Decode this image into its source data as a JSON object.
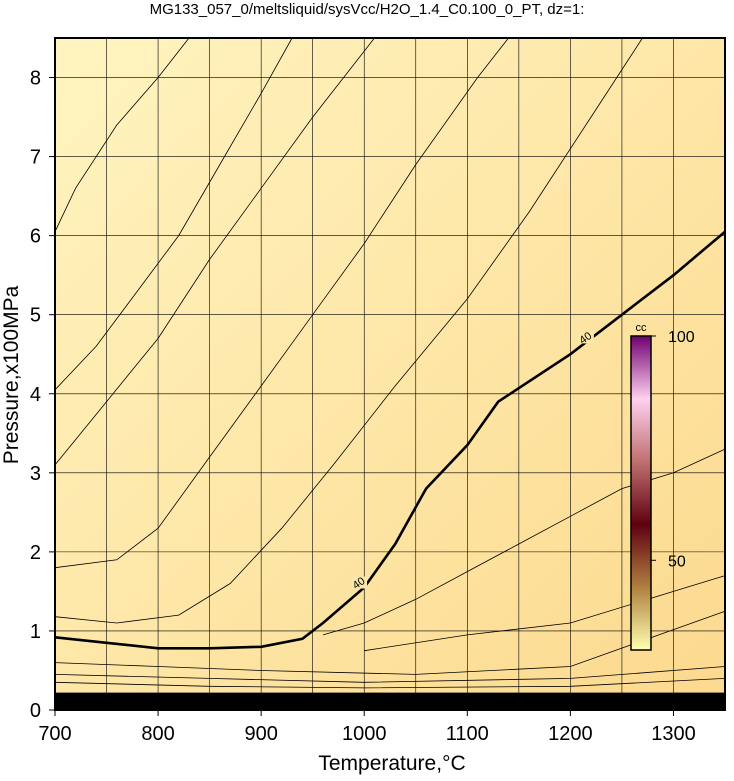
{
  "chart_data": {
    "type": "contour",
    "title": "MG133_057_0/meltsliquid/sysVcc/H2O_1.4_C0.100_0_PT, dz=1:",
    "xlabel": "Temperature,°C",
    "ylabel": "Pressure,x100MPa",
    "xlim": [
      700,
      1350
    ],
    "ylim": [
      0,
      8.5
    ],
    "xticks": [
      700,
      800,
      900,
      1000,
      1100,
      1200,
      1300
    ],
    "yticks": [
      0,
      1,
      2,
      3,
      4,
      5,
      6,
      7,
      8
    ],
    "xminorticks": [
      750,
      850,
      950,
      1050,
      1150,
      1250,
      1350
    ],
    "grid": true,
    "background": [
      "#fff4c0",
      "#fcd98e"
    ],
    "contours": [
      {
        "level": 40,
        "bold": true,
        "x": [
          700,
          750,
          800,
          850,
          900,
          940,
          960,
          1000,
          1030,
          1060,
          1100,
          1130,
          1200,
          1260,
          1300,
          1350
        ],
        "y": [
          0.92,
          0.85,
          0.78,
          0.78,
          0.8,
          0.9,
          1.1,
          1.55,
          2.1,
          2.8,
          3.35,
          3.9,
          4.5,
          5.1,
          5.5,
          6.05
        ]
      },
      {
        "x": [
          700,
          720,
          760,
          800,
          830
        ],
        "y": [
          6.05,
          6.6,
          7.4,
          8.0,
          8.5
        ]
      },
      {
        "x": [
          700,
          740,
          780,
          820,
          860,
          900,
          930
        ],
        "y": [
          4.05,
          4.6,
          5.3,
          6.0,
          6.9,
          7.8,
          8.5
        ]
      },
      {
        "x": [
          700,
          750,
          800,
          850,
          900,
          950,
          1010
        ],
        "y": [
          3.1,
          3.9,
          4.7,
          5.7,
          6.6,
          7.5,
          8.5
        ]
      },
      {
        "x": [
          700,
          760,
          800,
          850,
          900,
          950,
          1000,
          1050,
          1110,
          1140
        ],
        "y": [
          1.8,
          1.9,
          2.3,
          3.2,
          4.1,
          5.0,
          5.9,
          6.9,
          8.0,
          8.5
        ]
      },
      {
        "x": [
          700,
          760,
          820,
          870,
          920,
          970,
          1030,
          1100,
          1160,
          1220,
          1270
        ],
        "y": [
          1.18,
          1.1,
          1.2,
          1.6,
          2.3,
          3.1,
          4.1,
          5.2,
          6.3,
          7.5,
          8.5
        ]
      },
      {
        "x": [
          960,
          1000,
          1050,
          1100,
          1150,
          1200,
          1250,
          1300,
          1350
        ],
        "y": [
          0.95,
          1.1,
          1.4,
          1.75,
          2.1,
          2.45,
          2.8,
          3.0,
          3.3
        ]
      },
      {
        "x": [
          1000,
          1100,
          1200,
          1300,
          1350
        ],
        "y": [
          0.75,
          0.95,
          1.1,
          1.5,
          1.7
        ]
      },
      {
        "x": [
          700,
          800,
          900,
          1050,
          1200,
          1350
        ],
        "y": [
          0.6,
          0.55,
          0.5,
          0.45,
          0.55,
          1.25
        ]
      },
      {
        "x": [
          700,
          850,
          1000,
          1200,
          1350
        ],
        "y": [
          0.45,
          0.4,
          0.35,
          0.4,
          0.55
        ]
      },
      {
        "x": [
          700,
          850,
          1000,
          1200,
          1350
        ],
        "y": [
          0.35,
          0.3,
          0.28,
          0.3,
          0.4
        ]
      }
    ],
    "colorbar": {
      "label": "cc",
      "lim": [
        30,
        100
      ],
      "ticks": [
        50,
        100
      ],
      "colors": [
        "#ffffb0",
        "#b08040",
        "#600010",
        "#c07070",
        "#ffd0f0",
        "#700070"
      ]
    }
  }
}
